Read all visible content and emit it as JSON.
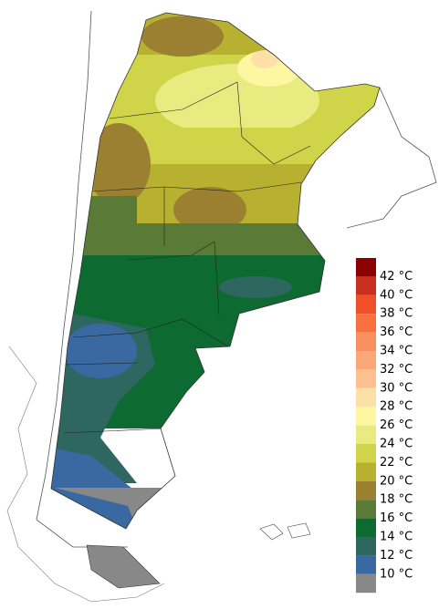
{
  "legend": {
    "labels": [
      "42 °C",
      "40 °C",
      "38 °C",
      "36 °C",
      "34 °C",
      "32 °C",
      "30 °C",
      "28 °C",
      "26 °C",
      "24 °C",
      "22 °C",
      "20 °C",
      "18 °C",
      "16 °C",
      "14 °C",
      "12 °C",
      "10 °C"
    ],
    "colors": [
      "#8b0000",
      "#c83020",
      "#f05028",
      "#f87040",
      "#f89060",
      "#fba878",
      "#fcc090",
      "#fde0a8",
      "#fcf7a0",
      "#e8eb80",
      "#d0d448",
      "#b8b030",
      "#9a8030",
      "#5a7a38",
      "#0d6a30",
      "#2e6660",
      "#3a68a0",
      "#888888"
    ]
  }
}
